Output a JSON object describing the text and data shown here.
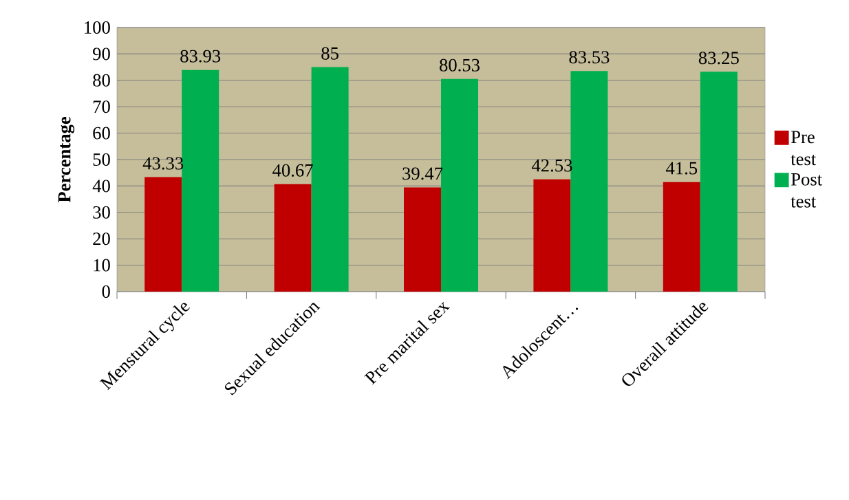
{
  "chart_data": {
    "type": "bar",
    "ylabel": "**Percentage**",
    "categories": [
      "Menstural cycle",
      "Sexual education",
      "Pre marital sex",
      "Adoloscent…",
      "Overall attitude"
    ],
    "series": [
      {
        "name": "Pre test",
        "color": "#c00000",
        "values": [
          43.33,
          40.67,
          39.47,
          42.53,
          41.5
        ]
      },
      {
        "name": "Post test",
        "color": "#00b050",
        "values": [
          83.93,
          85,
          80.53,
          83.53,
          83.25
        ]
      }
    ],
    "ylim": [
      0,
      100
    ],
    "yticks": [
      0,
      10,
      20,
      30,
      40,
      50,
      60,
      70,
      80,
      90,
      100
    ],
    "grid": "y",
    "legend": "right",
    "data_labels": true
  }
}
